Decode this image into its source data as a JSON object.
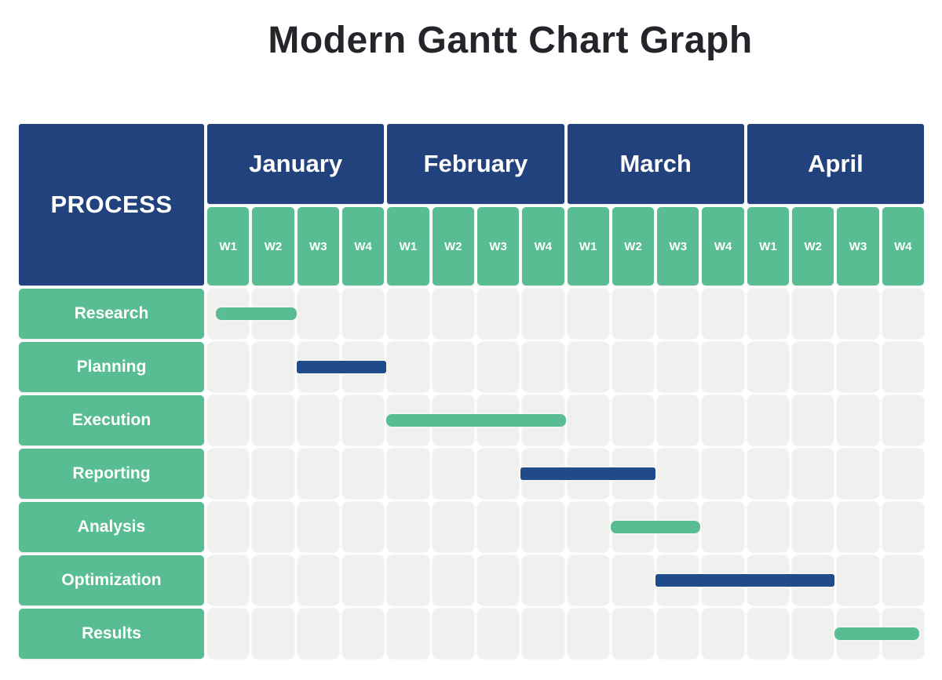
{
  "page": {
    "title": "Modern Gantt Chart Graph",
    "background": "#FFFFFF"
  },
  "colors": {
    "header_blue": "#22427D",
    "bar_blue": "#1F4A8B",
    "green": "#58BD93",
    "grid_cell": "#F0F0EE",
    "title_text": "#23252A",
    "header_text": "#FFFFFF"
  },
  "table": {
    "process_header": "PROCESS",
    "months": [
      "January",
      "February",
      "March",
      "April"
    ],
    "week_labels": [
      "W1",
      "W2",
      "W3",
      "W4"
    ],
    "rows": [
      "Research",
      "Planning",
      "Execution",
      "Reporting",
      "Analysis",
      "Optimization",
      "Results"
    ]
  },
  "chart_data": {
    "type": "bar",
    "subtype": "gantt",
    "title": "Modern Gantt Chart Graph",
    "x_unit": "week",
    "x_range_weeks": [
      0,
      16
    ],
    "months": [
      "January",
      "February",
      "March",
      "April"
    ],
    "weeks_per_month": 4,
    "grid": true,
    "legend": null,
    "tasks": [
      {
        "process": "Research",
        "start_week": 0.2,
        "end_week": 2.0,
        "duration_weeks": 1.8,
        "span": "Jan W1 - Jan W2",
        "color": "#58BD93",
        "color_key": "green"
      },
      {
        "process": "Planning",
        "start_week": 2.0,
        "end_week": 4.0,
        "duration_weeks": 2.0,
        "span": "Jan W3 - Jan W4",
        "color": "#1F4A8B",
        "color_key": "blue"
      },
      {
        "process": "Execution",
        "start_week": 4.0,
        "end_week": 8.0,
        "duration_weeks": 4.0,
        "span": "Feb W1 - Feb W4",
        "color": "#58BD93",
        "color_key": "green"
      },
      {
        "process": "Reporting",
        "start_week": 7.0,
        "end_week": 10.0,
        "duration_weeks": 3.0,
        "span": "Feb W4 - Mar W2",
        "color": "#1F4A8B",
        "color_key": "blue"
      },
      {
        "process": "Analysis",
        "start_week": 9.0,
        "end_week": 11.0,
        "duration_weeks": 2.0,
        "span": "Mar W2 - Mar W3",
        "color": "#58BD93",
        "color_key": "green"
      },
      {
        "process": "Optimization",
        "start_week": 10.0,
        "end_week": 14.0,
        "duration_weeks": 4.0,
        "span": "Mar W3 - Apr W2",
        "color": "#1F4A8B",
        "color_key": "blue"
      },
      {
        "process": "Results",
        "start_week": 14.0,
        "end_week": 15.9,
        "duration_weeks": 1.9,
        "span": "Apr W3 - Apr W4",
        "color": "#58BD93",
        "color_key": "green"
      }
    ]
  }
}
